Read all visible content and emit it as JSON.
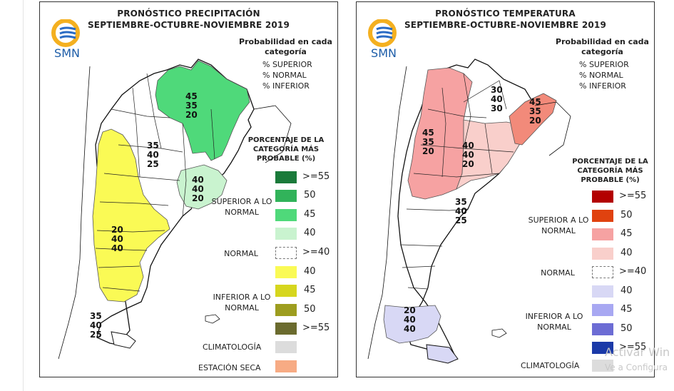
{
  "precip": {
    "title_line1": "PRONÓSTICO PRECIPITACIÓN",
    "title_line2": "SEPTIEMBRE-OCTUBRE-NOVIEMBRE 2019",
    "logo_text": "SMN",
    "prob_heading": "Probabilidad en cada categoría",
    "prob_items": [
      "% SUPERIOR",
      "% NORMAL",
      "% INFERIOR"
    ],
    "pct_heading": "PORCENTAJE DE LA CATEGORÍA MÁS PROBABLE (%)",
    "group_superior": "SUPERIOR A LO NORMAL",
    "group_normal": "NORMAL",
    "group_inferior": "INFERIOR A LO NORMAL",
    "legend": [
      {
        "label": ">=55",
        "color": "#1a7a3a"
      },
      {
        "label": "50",
        "color": "#31b35a"
      },
      {
        "label": "45",
        "color": "#4fd97a"
      },
      {
        "label": "40",
        "color": "#c9f3cf"
      },
      {
        "label": ">=40",
        "color": "#ffffff",
        "dashed": true
      },
      {
        "label": "40",
        "color": "#fafa55"
      },
      {
        "label": "45",
        "color": "#d6d61e"
      },
      {
        "label": "50",
        "color": "#9d9d1f"
      },
      {
        "label": ">=55",
        "color": "#6b6b2e"
      }
    ],
    "climatologia": {
      "label": "CLIMATOLOGÍA",
      "color": "#dcdcdc"
    },
    "estacion_seca": {
      "label": "ESTACIÓN SECA",
      "color": "#f7ab84"
    },
    "regions": [
      {
        "values": [
          "45",
          "35",
          "20"
        ]
      },
      {
        "values": [
          "35",
          "40",
          "25"
        ]
      },
      {
        "values": [
          "40",
          "40",
          "20"
        ]
      },
      {
        "values": [
          "20",
          "40",
          "40"
        ]
      },
      {
        "values": [
          "35",
          "40",
          "25"
        ]
      }
    ]
  },
  "temp": {
    "title_line1": "PRONÓSTICO TEMPERATURA",
    "title_line2": "SEPTIEMBRE-OCTUBRE-NOVIEMBRE 2019",
    "logo_text": "SMN",
    "prob_heading": "Probabilidad en cada categoría",
    "prob_items": [
      "% SUPERIOR",
      "% NORMAL",
      "% INFERIOR"
    ],
    "pct_heading": "PORCENTAJE DE LA CATEGORÍA MÁS PROBABLE (%)",
    "group_superior": "SUPERIOR A LO NORMAL",
    "group_normal": "NORMAL",
    "group_inferior": "INFERIOR A LO NORMAL",
    "legend": [
      {
        "label": ">=55",
        "color": "#b30000"
      },
      {
        "label": "50",
        "color": "#e0420f"
      },
      {
        "label": "45",
        "color": "#f6a2a2"
      },
      {
        "label": "40",
        "color": "#f9cfcb"
      },
      {
        "label": ">=40",
        "color": "#ffffff",
        "dashed": true
      },
      {
        "label": "40",
        "color": "#d8d8f5"
      },
      {
        "label": "45",
        "color": "#a8a8f2"
      },
      {
        "label": "50",
        "color": "#6c6cd4"
      },
      {
        "label": ">=55",
        "color": "#1b3aa8"
      }
    ],
    "climatologia": {
      "label": "CLIMATOLOGÍA",
      "color": "#dcdcdc"
    },
    "regions": [
      {
        "values": [
          "30",
          "40",
          "30"
        ]
      },
      {
        "values": [
          "45",
          "35",
          "20"
        ]
      },
      {
        "values": [
          "45",
          "35",
          "20"
        ]
      },
      {
        "values": [
          "40",
          "40",
          "20"
        ]
      },
      {
        "values": [
          "35",
          "40",
          "25"
        ]
      },
      {
        "values": [
          "20",
          "40",
          "40"
        ]
      }
    ]
  },
  "watermark": {
    "line1": "Activar Win",
    "line2": "Ve a Configura"
  }
}
